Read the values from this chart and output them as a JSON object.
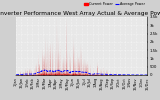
{
  "title": "Solar PV/Inverter Performance West Array Actual & Average Power Output",
  "title_fontsize": 4.2,
  "bg_color": "#d0d0d0",
  "plot_bg_color": "#e8e8e8",
  "grid_color": "#ffffff",
  "area_color": "#cc0000",
  "avg_line_color": "#0000ff",
  "ylim": [
    0,
    3500
  ],
  "ytick_vals": [
    0,
    500,
    1000,
    1500,
    2000,
    2500,
    3000,
    3500
  ],
  "ytick_labels": [
    "0",
    "500",
    "1k",
    "1.5k",
    "2k",
    "2.5k",
    "3k",
    "3.5k"
  ],
  "tick_fontsize": 2.8,
  "xlabel_fontsize": 2.5,
  "legend_labels": [
    "Current Power",
    "Average Power"
  ],
  "legend_colors": [
    "#ff0000",
    "#0000ff"
  ],
  "n_points": 2000,
  "seed": 1234
}
